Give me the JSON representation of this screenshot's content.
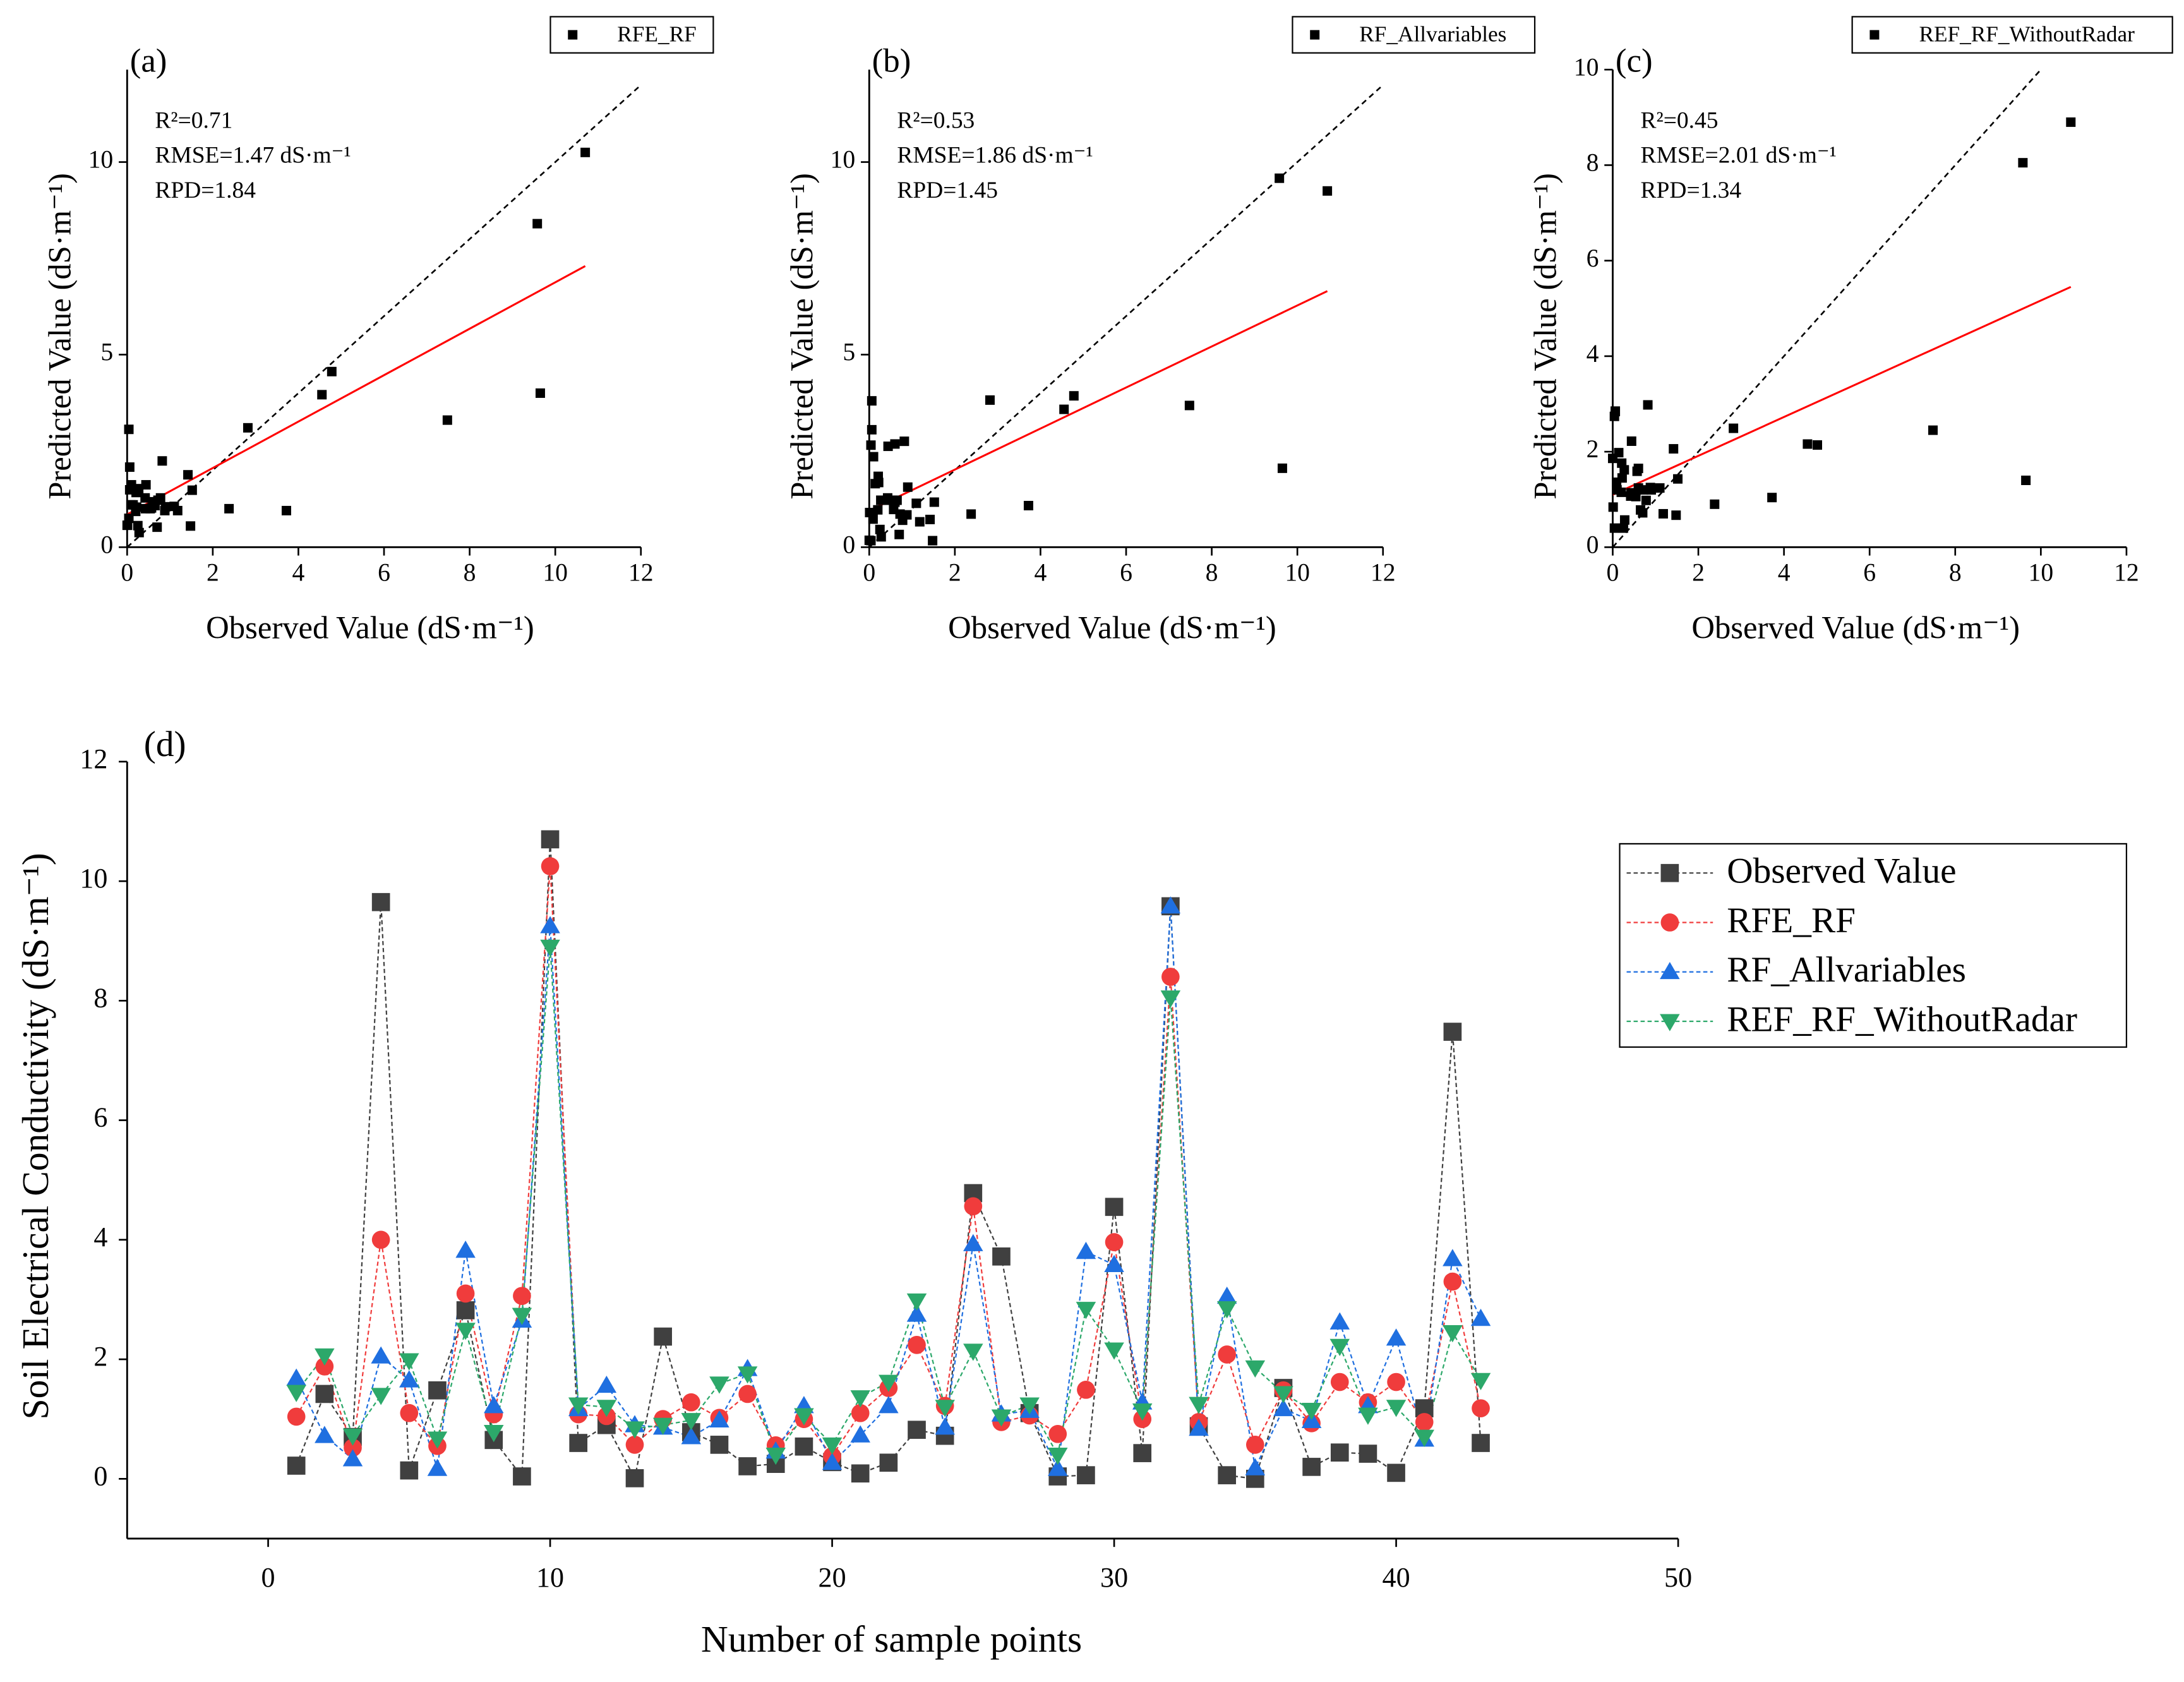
{
  "chart_data": [
    {
      "type": "scatter",
      "panel_label": "(a)",
      "annotations": [
        "R²=0.71",
        "RMSE=1.47 dS·m⁻¹",
        "RPD=1.84"
      ],
      "xlabel": "Observed Value (dS·m⁻¹)",
      "ylabel": "Predicted Value (dS·m⁻¹)",
      "x": [
        0.22,
        1.42,
        0.7,
        9.65,
        0.14,
        1.48,
        2.82,
        0.65,
        0.04,
        10.7,
        0.6,
        0.9,
        0.01,
        2.38,
        0.78,
        0.57,
        0.21,
        0.25,
        0.54,
        0.28,
        0.09,
        0.27,
        0.82,
        0.72,
        4.78,
        3.72,
        1.1,
        0.04,
        0.06,
        4.55,
        0.43,
        9.58,
        0.88,
        0.06,
        0.0,
        1.52,
        0.2,
        0.44,
        0.42,
        0.1,
        1.18,
        7.48,
        0.6
      ],
      "series": [
        {
          "name": "RFE_RF",
          "color": "#000000",
          "values": [
            1.04,
            1.88,
            0.52,
            4.0,
            1.1,
            0.55,
            3.1,
            1.08,
            3.06,
            10.25,
            1.08,
            1.05,
            0.57,
            1.0,
            1.28,
            1.02,
            1.42,
            0.56,
            1.0,
            0.38,
            1.1,
            1.52,
            2.24,
            1.22,
            4.56,
            0.95,
            1.06,
            0.75,
            1.49,
            3.96,
            1.0,
            8.4,
            0.95,
            2.08,
            0.57,
            1.48,
            0.93,
            1.62,
            1.28,
            1.62,
            0.95,
            3.3,
            1.18
          ]
        }
      ],
      "fit_line": {
        "color": "#ff0000",
        "x": [
          0,
          10.7
        ],
        "values": [
          0.85,
          7.3
        ]
      },
      "identity_line": {
        "color": "#000000",
        "dashed": true
      },
      "xlim": [
        0,
        12
      ],
      "xticks": [
        0,
        2,
        4,
        6,
        8,
        10,
        12
      ],
      "ylim": [
        0,
        12.4
      ],
      "yticks": [
        0,
        5,
        10
      ]
    },
    {
      "type": "scatter",
      "panel_label": "(b)",
      "annotations": [
        "R²=0.53",
        "RMSE=1.86 dS·m⁻¹",
        "RPD=1.45"
      ],
      "xlabel": "Observed Value (dS·m⁻¹)",
      "ylabel": "Predicted Value (dS·m⁻¹)",
      "x": [
        0.22,
        1.42,
        0.7,
        9.65,
        0.14,
        1.48,
        2.82,
        0.65,
        0.04,
        10.7,
        0.6,
        0.9,
        0.01,
        2.38,
        0.78,
        0.57,
        0.21,
        0.25,
        0.54,
        0.28,
        0.09,
        0.27,
        0.82,
        0.72,
        4.78,
        3.72,
        1.1,
        0.04,
        0.06,
        4.55,
        0.43,
        9.58,
        0.88,
        0.06,
        0.0,
        1.52,
        0.2,
        0.44,
        0.42,
        0.1,
        1.18,
        7.48,
        0.6
      ],
      "series": [
        {
          "name": "RF_Allvariables",
          "color": "#000000",
          "values": [
            1.68,
            0.72,
            0.33,
            2.05,
            1.65,
            0.17,
            3.82,
            1.22,
            2.65,
            9.25,
            1.17,
            1.56,
            0.9,
            0.86,
            0.7,
            0.98,
            1.84,
            0.46,
            1.22,
            0.27,
            0.73,
            1.22,
            2.75,
            0.86,
            3.93,
            1.08,
            1.14,
            0.17,
            3.8,
            3.58,
            1.28,
            9.58,
            0.84,
            3.05,
            0.18,
            1.17,
            0.97,
            2.62,
            1.22,
            2.35,
            0.66,
            3.68,
            2.68
          ]
        }
      ],
      "fit_line": {
        "color": "#ff0000",
        "x": [
          0,
          10.7
        ],
        "values": [
          0.95,
          6.65
        ]
      },
      "identity_line": {
        "color": "#000000",
        "dashed": true
      },
      "xlim": [
        0,
        12
      ],
      "xticks": [
        0,
        2,
        4,
        6,
        8,
        10,
        12
      ],
      "ylim": [
        0,
        12.4
      ],
      "yticks": [
        0,
        5,
        10
      ]
    },
    {
      "type": "scatter",
      "panel_label": "(c)",
      "annotations": [
        "R²=0.45",
        "RMSE=2.01 dS·m⁻¹",
        "RPD=1.34"
      ],
      "xlabel": "Observed Value (dS·m⁻¹)",
      "ylabel": "Predicted Value (dS·m⁻¹)",
      "x": [
        0.22,
        1.42,
        0.7,
        9.65,
        0.14,
        1.48,
        2.82,
        0.65,
        0.04,
        10.7,
        0.6,
        0.9,
        0.01,
        2.38,
        0.78,
        0.57,
        0.21,
        0.25,
        0.54,
        0.28,
        0.09,
        0.27,
        0.82,
        0.72,
        4.78,
        3.72,
        1.1,
        0.04,
        0.06,
        4.55,
        0.43,
        9.58,
        0.88,
        0.06,
        0.0,
        1.52,
        0.2,
        0.44,
        0.42,
        0.1,
        1.18,
        7.48,
        0.6
      ],
      "series": [
        {
          "name": "REF_RF_WithoutRadar",
          "color": "#000000",
          "values": [
            1.45,
            2.06,
            0.72,
            1.4,
            1.98,
            0.67,
            2.49,
            0.78,
            2.74,
            8.9,
            1.24,
            1.2,
            0.84,
            0.9,
            0.98,
            1.59,
            1.76,
            0.4,
            1.06,
            0.57,
            1.36,
            1.62,
            2.98,
            1.2,
            2.14,
            1.04,
            1.24,
            0.4,
            2.84,
            2.16,
            1.14,
            8.05,
            1.25,
            2.85,
            1.86,
            1.43,
            1.15,
            2.22,
            1.07,
            1.2,
            0.7,
            2.45,
            1.65
          ]
        }
      ],
      "fit_line": {
        "color": "#ff0000",
        "x": [
          0,
          10.7
        ],
        "values": [
          1.1,
          5.45
        ]
      },
      "identity_line": {
        "color": "#000000",
        "dashed": true
      },
      "xlim": [
        0,
        12
      ],
      "xticks": [
        0,
        2,
        4,
        6,
        8,
        10,
        12
      ],
      "ylim": [
        0,
        10
      ],
      "yticks": [
        0,
        2,
        4,
        6,
        8,
        10
      ]
    },
    {
      "type": "line",
      "panel_label": "(d)",
      "xlabel": "Number of sample points",
      "ylabel": "Soil Electrical Conductivity (dS·m⁻¹)",
      "x": [
        1,
        2,
        3,
        4,
        5,
        6,
        7,
        8,
        9,
        10,
        11,
        12,
        13,
        14,
        15,
        16,
        17,
        18,
        19,
        20,
        21,
        22,
        23,
        24,
        25,
        26,
        27,
        28,
        29,
        30,
        31,
        32,
        33,
        34,
        35,
        36,
        37,
        38,
        39,
        40,
        41,
        42,
        43
      ],
      "series": [
        {
          "name": "Observed Value",
          "color": "#404040",
          "marker": "square",
          "values": [
            0.22,
            1.42,
            0.7,
            9.65,
            0.14,
            1.48,
            2.82,
            0.65,
            0.04,
            10.7,
            0.6,
            0.9,
            0.01,
            2.38,
            0.78,
            0.57,
            0.21,
            0.25,
            0.54,
            0.28,
            0.09,
            0.27,
            0.82,
            0.72,
            4.78,
            3.72,
            1.1,
            0.04,
            0.06,
            4.55,
            0.43,
            9.58,
            0.88,
            0.06,
            0.0,
            1.52,
            0.2,
            0.44,
            0.42,
            0.1,
            1.18,
            7.48,
            0.6
          ]
        },
        {
          "name": "RFE_RF",
          "color": "#f03c3c",
          "marker": "circle",
          "values": [
            1.04,
            1.88,
            0.52,
            4.0,
            1.1,
            0.55,
            3.1,
            1.08,
            3.06,
            10.25,
            1.08,
            1.05,
            0.57,
            1.0,
            1.28,
            1.02,
            1.42,
            0.56,
            1.0,
            0.38,
            1.1,
            1.52,
            2.24,
            1.22,
            4.56,
            0.95,
            1.06,
            0.75,
            1.49,
            3.96,
            1.0,
            8.4,
            0.95,
            2.08,
            0.57,
            1.48,
            0.93,
            1.62,
            1.28,
            1.62,
            0.95,
            3.3,
            1.18
          ]
        },
        {
          "name": "RF_Allvariables",
          "color": "#1f6fe0",
          "marker": "triangle-up",
          "values": [
            1.68,
            0.72,
            0.33,
            2.05,
            1.65,
            0.17,
            3.82,
            1.22,
            2.65,
            9.25,
            1.17,
            1.56,
            0.9,
            0.86,
            0.7,
            0.98,
            1.84,
            0.46,
            1.22,
            0.27,
            0.73,
            1.22,
            2.75,
            0.86,
            3.93,
            1.08,
            1.14,
            0.17,
            3.8,
            3.58,
            1.28,
            9.58,
            0.84,
            3.05,
            0.18,
            1.17,
            0.97,
            2.62,
            1.22,
            2.35,
            0.66,
            3.68,
            2.68
          ]
        },
        {
          "name": "REF_RF_WithoutRadar",
          "color": "#2ca86a",
          "marker": "triangle-down",
          "values": [
            1.45,
            2.06,
            0.72,
            1.4,
            1.98,
            0.67,
            2.49,
            0.78,
            2.74,
            8.9,
            1.24,
            1.2,
            0.84,
            0.9,
            0.98,
            1.59,
            1.76,
            0.4,
            1.06,
            0.57,
            1.36,
            1.62,
            2.98,
            1.2,
            2.14,
            1.04,
            1.24,
            0.4,
            2.84,
            2.16,
            1.14,
            8.05,
            1.25,
            2.85,
            1.86,
            1.43,
            1.15,
            2.22,
            1.07,
            1.2,
            0.7,
            2.45,
            1.65
          ]
        }
      ],
      "xlim": [
        -5,
        50
      ],
      "xticks": [
        0,
        10,
        20,
        30,
        40,
        50
      ],
      "ylim": [
        -1,
        12
      ],
      "yticks": [
        0,
        2,
        4,
        6,
        8,
        10,
        12
      ]
    }
  ]
}
